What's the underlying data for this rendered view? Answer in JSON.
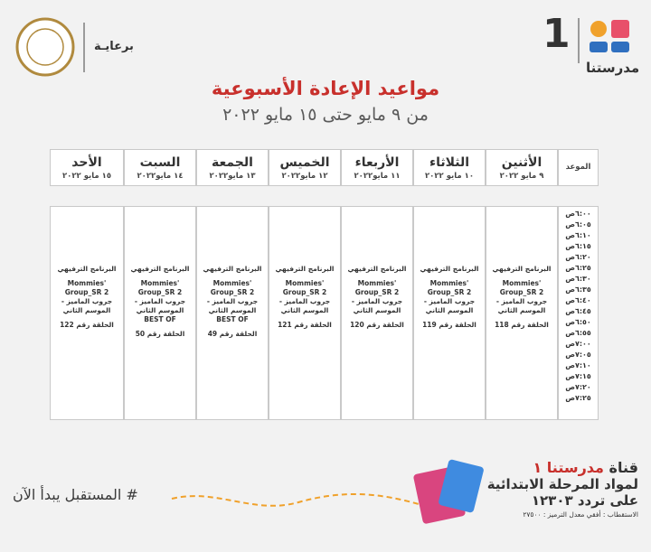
{
  "header": {
    "logo_number": "1",
    "logo_text": "مدرستنا",
    "sponsor": "برعايـة"
  },
  "title": "مواعيد الإعادة الأسبوعية",
  "subtitle": "من ٩ مايو حتى ١٥ مايو ٢٠٢٢",
  "table": {
    "time_header": "الموعد",
    "days": [
      {
        "name": "الأثنين",
        "date": "٩ مايو ٢٠٢٢",
        "program": "البرنامج الترفيهي",
        "group": "Mommies' Group_SR 2",
        "season": "جروب الماميز - الموسم الثاني",
        "episode": "الحلقة رقم 118"
      },
      {
        "name": "الثلاثاء",
        "date": "١٠ مايو ٢٠٢٢",
        "program": "البرنامج الترفيهي",
        "group": "Mommies' Group_SR 2",
        "season": "جروب الماميز - الموسم الثاني",
        "episode": "الحلقة رقم 119"
      },
      {
        "name": "الأربعاء",
        "date": "١١ مايو٢٠٢٢",
        "program": "البرنامج الترفيهي",
        "group": "Mommies' Group_SR 2",
        "season": "جروب الماميز - الموسم الثاني",
        "episode": "الحلقة رقم 120"
      },
      {
        "name": "الخميس",
        "date": "١٢ مايو٢٠٢٢",
        "program": "البرنامج الترفيهي",
        "group": "Mommies' Group_SR 2",
        "season": "جروب الماميز - الموسم الثاني",
        "episode": "الحلقة رقم 121"
      },
      {
        "name": "الجمعة",
        "date": "١٣ مايو٢٠٢٢",
        "program": "البرنامج الترفيهي",
        "group": "Mommies' Group_SR 2",
        "season": "جروب الماميز - الموسم الثاني",
        "note": "BEST OF",
        "episode": "الحلقة رقم 49"
      },
      {
        "name": "السبت",
        "date": "١٤ مايو٢٠٢٢",
        "program": "البرنامج الترفيهي",
        "group": "Mommies' Group_SR 2",
        "season": "جروب الماميز - الموسم الثاني",
        "note": "BEST OF",
        "episode": "الحلقة رقم 50"
      },
      {
        "name": "الأحد",
        "date": "١٥ مايو ٢٠٢٢",
        "program": "البرنامج الترفيهي",
        "group": "Mommies' Group_SR 2",
        "season": "جروب الماميز - الموسم الثاني",
        "episode": "الحلقة رقم 122"
      }
    ],
    "times": [
      "٦:٠٠ص",
      "٦:٠٥ص",
      "٦:١٠ص",
      "٦:١٥ص",
      "٦:٢٠ص",
      "٦:٢٥ص",
      "٦:٣٠ص",
      "٦:٣٥ص",
      "٦:٤٠ص",
      "٦:٤٥ص",
      "٦:٥٠ص",
      "٦:٥٥ص",
      "٧:٠٠ص",
      "٧:٠٥ص",
      "٧:١٠ص",
      "٧:١٥ص",
      "٧:٢٠ص",
      "٧:٢٥ص"
    ]
  },
  "footer": {
    "hashtag": "# المستقبل يبدأ الآن",
    "channel_prefix": "قناة",
    "channel_name": "مدرستنا ١",
    "subject": "لمواد المرحلة الابتدائية",
    "frequency": "على تردد ١٢٣٠٣",
    "specs": "الاستقطاب : أفقي معدل الترميز : ٢٧٥٠٠"
  }
}
